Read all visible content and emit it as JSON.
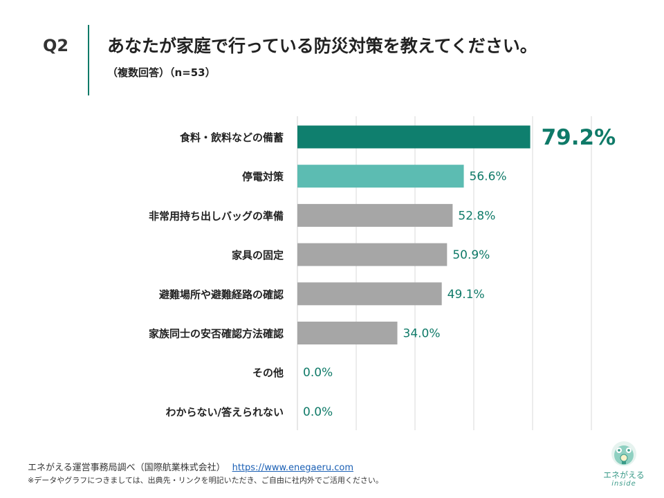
{
  "header": {
    "question_no": "Q2",
    "title": "あなたが家庭で行っている防災対策を教えてください。",
    "subtitle": "（複数回答）（n=53）"
  },
  "chart_data": {
    "type": "bar",
    "orientation": "horizontal",
    "categories": [
      "食料・飲料などの備蓄",
      "停電対策",
      "非常用持ち出しバッグの準備",
      "家具の固定",
      "避難場所や避難経路の確認",
      "家族同士の安否確認方法確認",
      "その他",
      "わからない/答えられない"
    ],
    "values": [
      79.2,
      56.6,
      52.8,
      50.9,
      49.1,
      34.0,
      0.0,
      0.0
    ],
    "value_labels": [
      "79.2%",
      "56.6%",
      "52.8%",
      "50.9%",
      "49.1%",
      "34.0%",
      "0.0%",
      "0.0%"
    ],
    "bar_colors": [
      "#0f7f6e",
      "#5cbcb2",
      "#a6a6a6",
      "#a6a6a6",
      "#a6a6a6",
      "#a6a6a6",
      "#a6a6a6",
      "#a6a6a6"
    ],
    "xlim": [
      0,
      100
    ],
    "grid": true
  },
  "footer": {
    "source": "エネがえる運営事務局調べ（国際航業株式会社）",
    "url": "https://www.enegaeru.com",
    "note": "※データやグラフにつきましては、出典先・リンクを明記いただき、ご自由に社内外でご活用ください。"
  },
  "logo": {
    "name": "エネがえる",
    "sub": "inside"
  },
  "colors": {
    "accent": "#0f7a68",
    "highlight_bar": "#0f7f6e",
    "second_bar": "#5cbcb2",
    "default_bar": "#a6a6a6",
    "value_text": "#0f7a68"
  }
}
